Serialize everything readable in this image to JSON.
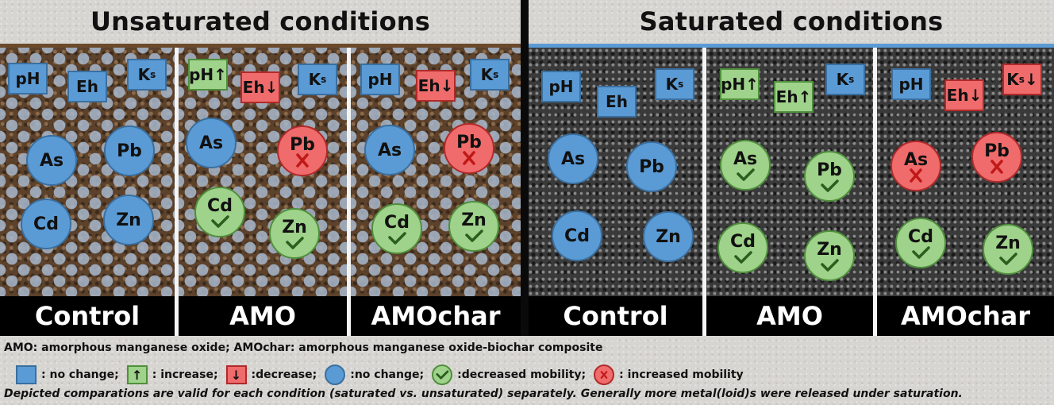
{
  "titles": {
    "unsaturated": "Unsaturated conditions",
    "saturated": "Saturated conditions"
  },
  "panel_labels": [
    "Control",
    "AMO",
    "AMOchar",
    "Control",
    "AMO",
    "AMOchar"
  ],
  "params": {
    "ph": "pH",
    "eh": "Eh",
    "k": "K",
    "k_sub": "s",
    "up": "↑",
    "down": "↓"
  },
  "metals": {
    "as": "As",
    "pb": "Pb",
    "cd": "Cd",
    "zn": "Zn"
  },
  "colors": {
    "no_change": "#5b9bd5",
    "increase": "#9fd28a",
    "decrease": "#f06b6b",
    "saturated_line": "#5b9bd5",
    "unsaturated_line": "#6b4a2c"
  },
  "legend": {
    "definitions": "AMO: amorphous manganese oxide; AMOchar: amorphous manganese oxide-biochar composite",
    "sq_no_change": ": no change;",
    "sq_increase": ": increase;",
    "sq_decrease": ":decrease;",
    "ci_no_change": ":no change;",
    "ci_decreased": ":decreased mobility;",
    "ci_increased": ": increased mobility",
    "note": "Depicted comparations are valid for each condition (saturated vs. unsaturated) separately. Generally more metal(loid)s were released under saturation."
  }
}
